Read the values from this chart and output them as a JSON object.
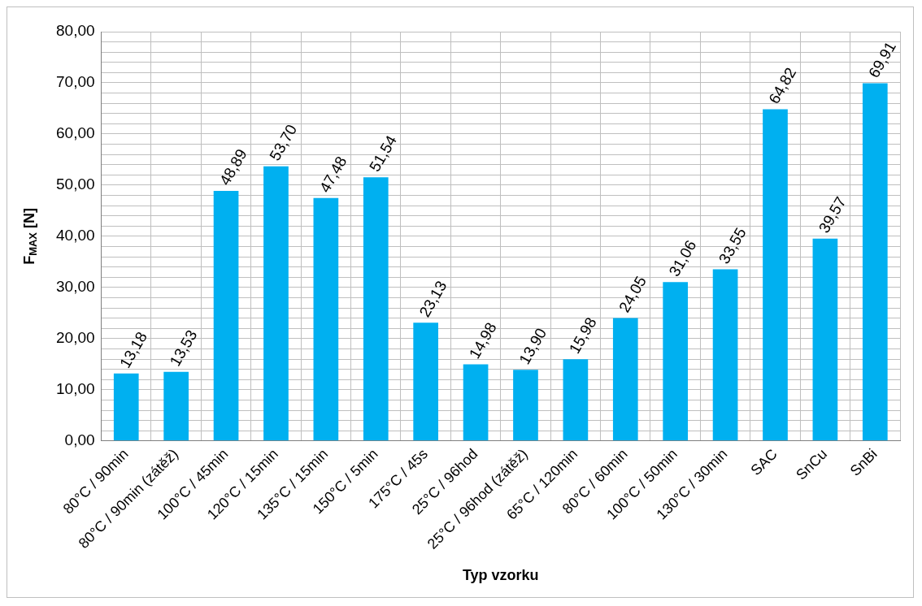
{
  "chart_data": {
    "type": "bar",
    "xlabel": "Typ vzorku",
    "ylabel": "F$_{MAX}$ [N]",
    "categories": [
      "80°C / 90min",
      "80°C / 90min (zátěž)",
      "100°C / 45min",
      "120°C / 15min",
      "135°C / 15min",
      "150°C / 5min",
      "175°C / 45s",
      "25°C / 96hod",
      "25°C / 96hod (zátěž)",
      "65°C / 120min",
      "80°C / 60min",
      "100°C / 50min",
      "130°C / 30min",
      "SAC",
      "SnCu",
      "SnBi"
    ],
    "values": [
      13.18,
      13.53,
      48.89,
      53.7,
      47.48,
      51.54,
      23.13,
      14.98,
      13.9,
      15.98,
      24.05,
      31.06,
      33.55,
      64.82,
      39.57,
      69.91
    ],
    "value_labels": [
      "13,18",
      "13,53",
      "48,89",
      "53,70",
      "47,48",
      "51,54",
      "23,13",
      "14,98",
      "13,90",
      "15,98",
      "24,05",
      "31,06",
      "33,55",
      "64,82",
      "39,57",
      "69,91"
    ],
    "color": "#00b0f0",
    "ylim": [
      0,
      80
    ],
    "yticks": [
      {
        "value": 0,
        "label": "0,00"
      },
      {
        "value": 2,
        "label": null
      },
      {
        "value": 4,
        "label": null
      },
      {
        "value": 6,
        "label": null
      },
      {
        "value": 8,
        "label": null
      },
      {
        "value": 10,
        "label": "10,00"
      },
      {
        "value": 12,
        "label": null
      },
      {
        "value": 14,
        "label": null
      },
      {
        "value": 16,
        "label": null
      },
      {
        "value": 18,
        "label": null
      },
      {
        "value": 20,
        "label": "20,00"
      },
      {
        "value": 22,
        "label": null
      },
      {
        "value": 24,
        "label": null
      },
      {
        "value": 26,
        "label": null
      },
      {
        "value": 28,
        "label": null
      },
      {
        "value": 30,
        "label": "30,00"
      },
      {
        "value": 32,
        "label": null
      },
      {
        "value": 34,
        "label": null
      },
      {
        "value": 36,
        "label": null
      },
      {
        "value": 38,
        "label": null
      },
      {
        "value": 40,
        "label": "40,00"
      },
      {
        "value": 42,
        "label": null
      },
      {
        "value": 44,
        "label": null
      },
      {
        "value": 46,
        "label": null
      },
      {
        "value": 48,
        "label": null
      },
      {
        "value": 50,
        "label": "50,00"
      },
      {
        "value": 52,
        "label": null
      },
      {
        "value": 54,
        "label": null
      },
      {
        "value": 56,
        "label": null
      },
      {
        "value": 58,
        "label": null
      },
      {
        "value": 60,
        "label": "60,00"
      },
      {
        "value": 62,
        "label": null
      },
      {
        "value": 64,
        "label": null
      },
      {
        "value": 66,
        "label": null
      },
      {
        "value": 68,
        "label": null
      },
      {
        "value": 70,
        "label": "70,00"
      },
      {
        "value": 72,
        "label": null
      },
      {
        "value": 74,
        "label": null
      },
      {
        "value": 76,
        "label": null
      },
      {
        "value": 78,
        "label": null
      },
      {
        "value": 80,
        "label": "80,00"
      }
    ],
    "grid": true
  }
}
